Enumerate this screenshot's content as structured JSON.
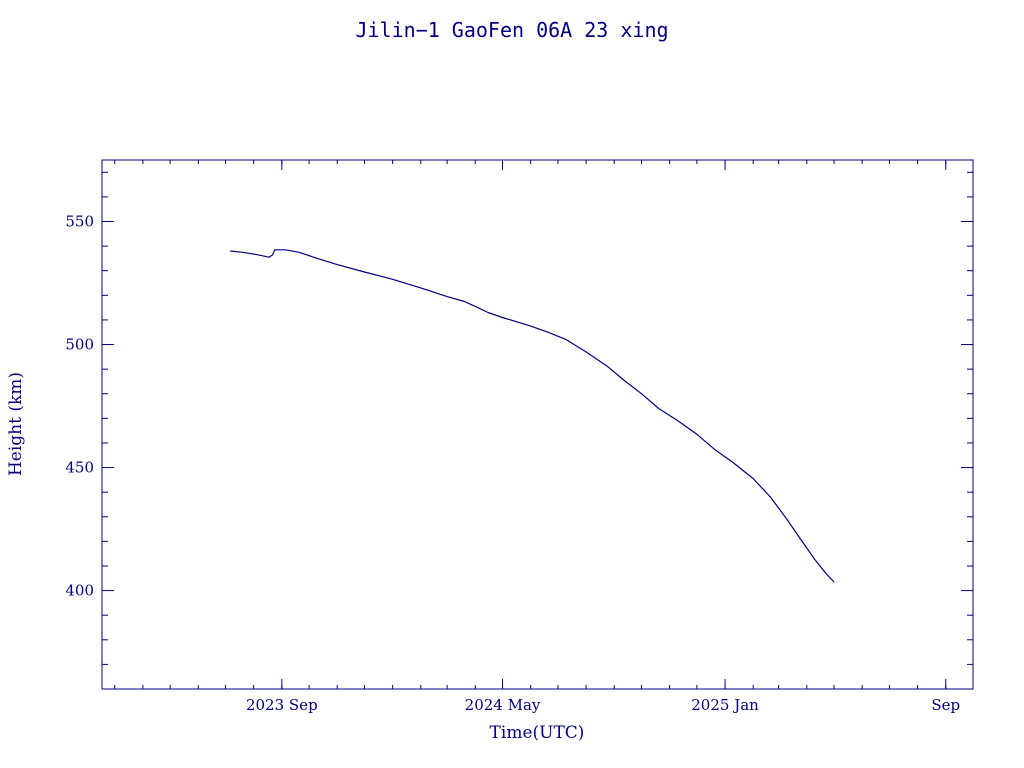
{
  "chart_data": {
    "type": "line",
    "title": "Jilin−1 GaoFen 06A 23 xing",
    "xlabel": "Time(UTC)",
    "ylabel": "Height (km)",
    "ylim": [
      360,
      575
    ],
    "xlim": [
      "2023-02-15",
      "2025-10-01"
    ],
    "x_ticks": [
      {
        "date": "2023-09-01",
        "label": "2023 Sep"
      },
      {
        "date": "2024-05-01",
        "label": "2024 May"
      },
      {
        "date": "2025-01-01",
        "label": "2025 Jan"
      },
      {
        "date": "2025-09-01",
        "label": "Sep"
      }
    ],
    "y_ticks": [
      {
        "value": 400,
        "label": "400"
      },
      {
        "value": 450,
        "label": "450"
      },
      {
        "value": 500,
        "label": "500"
      },
      {
        "value": 550,
        "label": "550"
      }
    ],
    "grid": false,
    "color": "#000080",
    "series": [
      {
        "points": [
          [
            "2023-07-06",
            538
          ],
          [
            "2023-07-20",
            537.5
          ],
          [
            "2023-08-05",
            536.5
          ],
          [
            "2023-08-18",
            535.5
          ],
          [
            "2023-08-22",
            536.5
          ],
          [
            "2023-08-24",
            538.5
          ],
          [
            "2023-09-05",
            538.5
          ],
          [
            "2023-09-20",
            537.5
          ],
          [
            "2023-10-10",
            535
          ],
          [
            "2023-11-01",
            532.5
          ],
          [
            "2023-12-01",
            529.5
          ],
          [
            "2024-01-01",
            526.5
          ],
          [
            "2024-02-01",
            523
          ],
          [
            "2024-03-01",
            519.5
          ],
          [
            "2024-03-20",
            517.5
          ],
          [
            "2024-04-01",
            515.5
          ],
          [
            "2024-04-15",
            513
          ],
          [
            "2024-05-01",
            511
          ],
          [
            "2024-06-01",
            507.5
          ],
          [
            "2024-06-20",
            505
          ],
          [
            "2024-07-10",
            502
          ],
          [
            "2024-08-01",
            497
          ],
          [
            "2024-08-25",
            491
          ],
          [
            "2024-09-10",
            486
          ],
          [
            "2024-10-01",
            480
          ],
          [
            "2024-10-20",
            474
          ],
          [
            "2024-11-10",
            469
          ],
          [
            "2024-12-01",
            463.5
          ],
          [
            "2024-12-20",
            457.5
          ],
          [
            "2025-01-10",
            452
          ],
          [
            "2025-02-01",
            445.5
          ],
          [
            "2025-02-20",
            438
          ],
          [
            "2025-03-10",
            429
          ],
          [
            "2025-03-25",
            421
          ],
          [
            "2025-04-10",
            412.5
          ],
          [
            "2025-04-22",
            407
          ],
          [
            "2025-05-01",
            403.5
          ]
        ]
      }
    ]
  }
}
